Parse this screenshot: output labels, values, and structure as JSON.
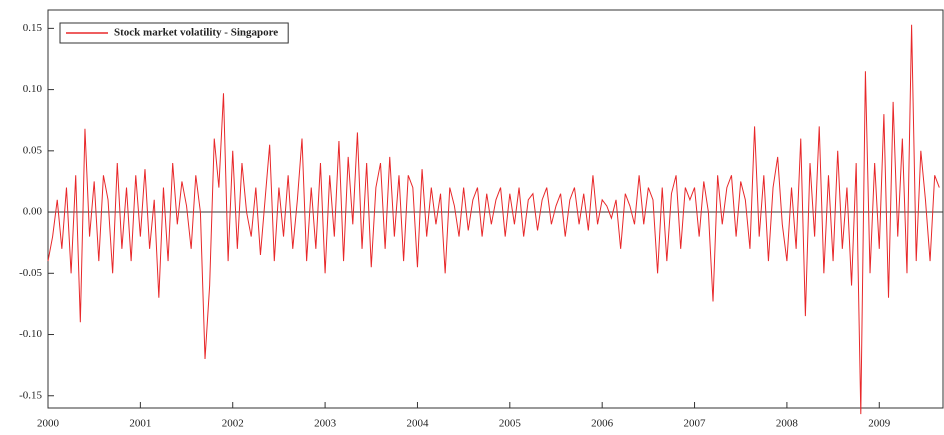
{
  "chart_data": {
    "type": "line",
    "legend": "upper left",
    "series": [
      {
        "name": "Stock market volatility - Singapore",
        "color": "#e8282a",
        "x": [
          2000,
          2000.05,
          2000.1,
          2000.15,
          2000.2,
          2000.25,
          2000.3,
          2000.35,
          2000.4,
          2000.45,
          2000.5,
          2000.55,
          2000.6,
          2000.65,
          2000.7,
          2000.75,
          2000.8,
          2000.85,
          2000.9,
          2000.95,
          2001,
          2001.05,
          2001.1,
          2001.15,
          2001.2,
          2001.25,
          2001.3,
          2001.35,
          2001.4,
          2001.45,
          2001.5,
          2001.55,
          2001.6,
          2001.65,
          2001.7,
          2001.75,
          2001.8,
          2001.85,
          2001.9,
          2001.95,
          2002,
          2002.05,
          2002.1,
          2002.15,
          2002.2,
          2002.25,
          2002.3,
          2002.35,
          2002.4,
          2002.45,
          2002.5,
          2002.55,
          2002.6,
          2002.65,
          2002.7,
          2002.75,
          2002.8,
          2002.85,
          2002.9,
          2002.95,
          2003,
          2003.05,
          2003.1,
          2003.15,
          2003.2,
          2003.25,
          2003.3,
          2003.35,
          2003.4,
          2003.45,
          2003.5,
          2003.55,
          2003.6,
          2003.65,
          2003.7,
          2003.75,
          2003.8,
          2003.85,
          2003.9,
          2003.95,
          2004,
          2004.05,
          2004.1,
          2004.15,
          2004.2,
          2004.25,
          2004.3,
          2004.35,
          2004.4,
          2004.45,
          2004.5,
          2004.55,
          2004.6,
          2004.65,
          2004.7,
          2004.75,
          2004.8,
          2004.85,
          2004.9,
          2004.95,
          2005,
          2005.05,
          2005.1,
          2005.15,
          2005.2,
          2005.25,
          2005.3,
          2005.35,
          2005.4,
          2005.45,
          2005.5,
          2005.55,
          2005.6,
          2005.65,
          2005.7,
          2005.75,
          2005.8,
          2005.85,
          2005.9,
          2005.95,
          2006,
          2006.05,
          2006.1,
          2006.15,
          2006.2,
          2006.25,
          2006.3,
          2006.35,
          2006.4,
          2006.45,
          2006.5,
          2006.55,
          2006.6,
          2006.65,
          2006.7,
          2006.75,
          2006.8,
          2006.85,
          2006.9,
          2006.95,
          2007,
          2007.05,
          2007.1,
          2007.15,
          2007.2,
          2007.25,
          2007.3,
          2007.35,
          2007.4,
          2007.45,
          2007.5,
          2007.55,
          2007.6,
          2007.65,
          2007.7,
          2007.75,
          2007.8,
          2007.85,
          2007.9,
          2007.95,
          2008,
          2008.05,
          2008.1,
          2008.15,
          2008.2,
          2008.25,
          2008.3,
          2008.35,
          2008.4,
          2008.45,
          2008.5,
          2008.55,
          2008.6,
          2008.65,
          2008.7,
          2008.75,
          2008.8,
          2008.85,
          2008.9,
          2008.95,
          2009,
          2009.05,
          2009.1,
          2009.15,
          2009.2,
          2009.25,
          2009.3,
          2009.35,
          2009.4,
          2009.45,
          2009.5,
          2009.55,
          2009.6,
          2009.65
        ],
        "values": [
          -0.04,
          -0.02,
          0.01,
          -0.03,
          0.02,
          -0.05,
          0.03,
          -0.09,
          0.068,
          -0.02,
          0.025,
          -0.04,
          0.03,
          0.01,
          -0.05,
          0.04,
          -0.03,
          0.02,
          -0.04,
          0.03,
          -0.02,
          0.035,
          -0.03,
          0.01,
          -0.07,
          0.02,
          -0.04,
          0.04,
          -0.01,
          0.025,
          0.005,
          -0.03,
          0.03,
          0.0,
          -0.12,
          -0.06,
          0.06,
          0.02,
          0.097,
          -0.04,
          0.05,
          -0.03,
          0.04,
          0.0,
          -0.02,
          0.02,
          -0.035,
          0.01,
          0.055,
          -0.04,
          0.02,
          -0.02,
          0.03,
          -0.03,
          0.01,
          0.06,
          -0.04,
          0.02,
          -0.03,
          0.04,
          -0.05,
          0.03,
          -0.02,
          0.058,
          -0.04,
          0.045,
          -0.01,
          0.065,
          -0.03,
          0.04,
          -0.045,
          0.02,
          0.04,
          -0.03,
          0.045,
          -0.02,
          0.03,
          -0.04,
          0.03,
          0.02,
          -0.045,
          0.035,
          -0.02,
          0.02,
          -0.01,
          0.015,
          -0.05,
          0.02,
          0.005,
          -0.02,
          0.02,
          -0.015,
          0.01,
          0.02,
          -0.02,
          0.015,
          -0.01,
          0.01,
          0.02,
          -0.02,
          0.015,
          -0.01,
          0.02,
          -0.02,
          0.01,
          0.015,
          -0.015,
          0.01,
          0.02,
          -0.01,
          0.005,
          0.015,
          -0.02,
          0.01,
          0.02,
          -0.01,
          0.015,
          -0.015,
          0.03,
          -0.01,
          0.01,
          0.005,
          -0.005,
          0.01,
          -0.03,
          0.015,
          0.005,
          -0.01,
          0.03,
          -0.01,
          0.02,
          0.01,
          -0.05,
          0.02,
          -0.04,
          0.015,
          0.03,
          -0.03,
          0.02,
          0.01,
          0.02,
          -0.02,
          0.025,
          0.0,
          -0.073,
          0.03,
          -0.01,
          0.02,
          0.03,
          -0.02,
          0.025,
          0.01,
          -0.03,
          0.07,
          -0.02,
          0.03,
          -0.04,
          0.02,
          0.045,
          -0.01,
          -0.04,
          0.02,
          -0.03,
          0.06,
          -0.085,
          0.04,
          -0.02,
          0.07,
          -0.05,
          0.03,
          -0.04,
          0.05,
          -0.03,
          0.02,
          -0.06,
          0.04,
          -0.165,
          0.115,
          -0.05,
          0.04,
          -0.03,
          0.08,
          -0.07,
          0.09,
          -0.02,
          0.06,
          -0.05,
          0.153,
          -0.04,
          0.05,
          0.01,
          -0.04,
          0.03,
          0.02
        ]
      }
    ],
    "xlim": [
      2000,
      2009.69
    ],
    "xticks": [
      2000,
      2001,
      2002,
      2003,
      2004,
      2005,
      2006,
      2007,
      2008,
      2009
    ],
    "ylim": [
      -0.16,
      0.165
    ],
    "yticks": [
      -0.15,
      {
        "value": -0.1,
        "label": "-0.10"
      },
      -0.05,
      {
        "value": 0,
        "label": "0.00"
      },
      0.05,
      {
        "value": 0.1,
        "label": "0.10"
      },
      0.15
    ],
    "zero_line": true
  }
}
